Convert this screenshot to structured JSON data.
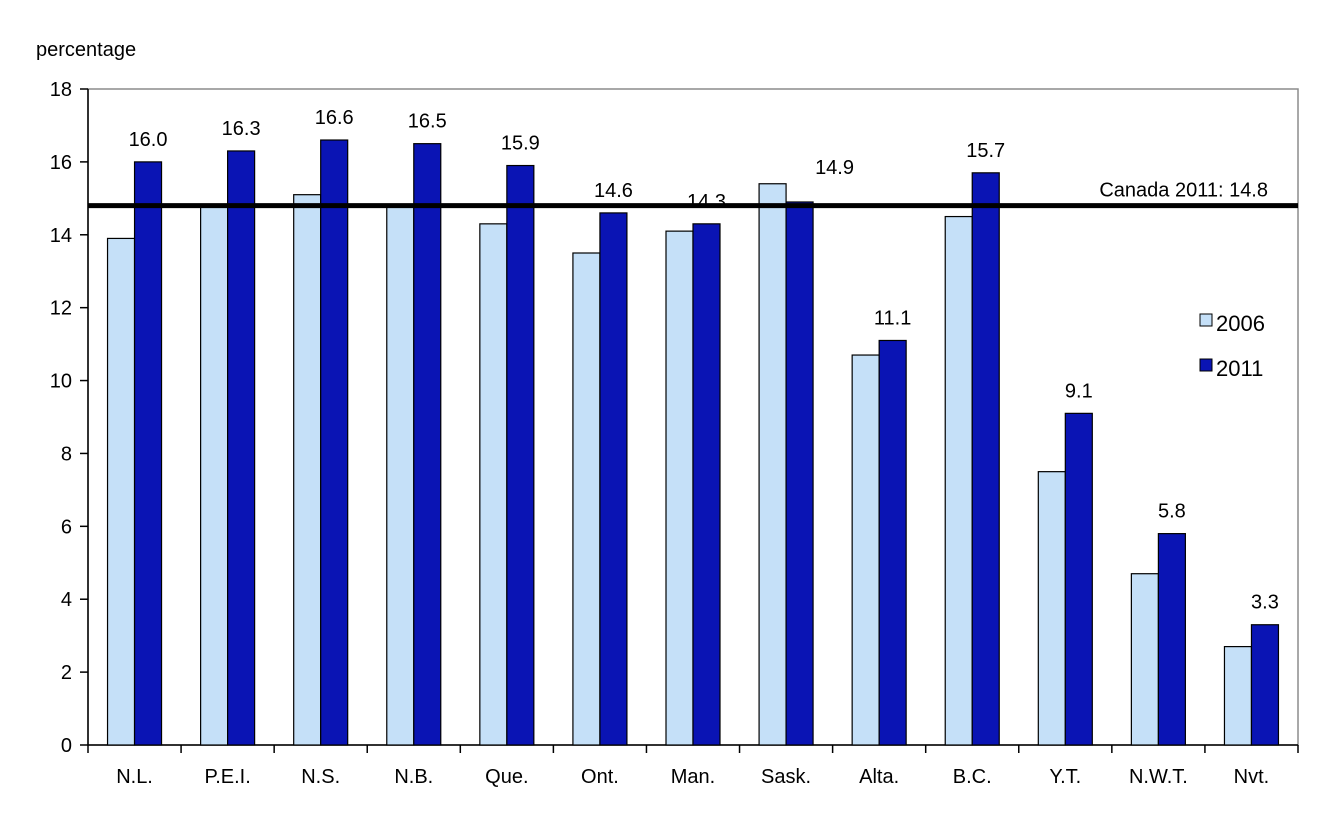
{
  "chart_data": {
    "type": "bar",
    "ylabel": "percentage",
    "ylim": [
      0,
      18
    ],
    "yticks": [
      "0",
      "2",
      "4",
      "6",
      "8",
      "10",
      "12",
      "14",
      "16",
      "18"
    ],
    "categories": [
      "N.L.",
      "P.E.I.",
      "N.S.",
      "N.B.",
      "Que.",
      "Ont.",
      "Man.",
      "Sask.",
      "Alta.",
      "B.C.",
      "Y.T.",
      "N.W.T.",
      "Nvt."
    ],
    "series": [
      {
        "name": "2006",
        "color": "#c5e0f8",
        "values": [
          13.9,
          14.8,
          15.1,
          14.8,
          14.3,
          13.5,
          14.1,
          15.4,
          10.7,
          14.5,
          7.5,
          4.7,
          2.7
        ]
      },
      {
        "name": "2011",
        "color": "#0a14b4",
        "values": [
          16.0,
          16.3,
          16.6,
          16.5,
          15.9,
          14.6,
          14.3,
          14.9,
          11.1,
          15.7,
          9.1,
          5.8,
          3.3
        ]
      }
    ],
    "data_labels": [
      "16.0",
      "16.3",
      "16.6",
      "16.5",
      "15.9",
      "14.6",
      "14.3",
      "14.9",
      "11.1",
      "15.7",
      "9.1",
      "5.8",
      "3.3"
    ],
    "reference_line": {
      "value": 14.8,
      "label": "Canada 2011: 14.8",
      "color": "#000000"
    },
    "legend": {
      "position": "right",
      "entries": [
        "2006",
        "2011"
      ]
    },
    "grid": false
  }
}
